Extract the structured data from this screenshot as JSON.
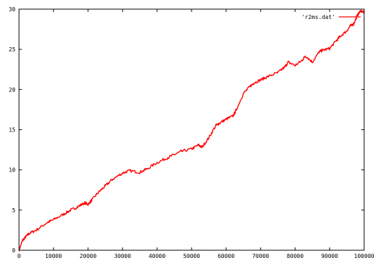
{
  "chart_data": {
    "type": "line",
    "title": "",
    "xlabel": "",
    "ylabel": "",
    "xlim": [
      0,
      100000
    ],
    "ylim": [
      0,
      30
    ],
    "x_ticks": [
      0,
      10000,
      20000,
      30000,
      40000,
      50000,
      60000,
      70000,
      80000,
      90000,
      100000
    ],
    "y_ticks": [
      0,
      5,
      10,
      15,
      20,
      25,
      30
    ],
    "grid": false,
    "legend_position": "top-right",
    "series": [
      {
        "name": "'r2ms.dat'",
        "color": "#ff0000",
        "x": [
          0,
          1000,
          2000,
          3000,
          5000,
          8000,
          10000,
          13000,
          15000,
          17000,
          19000,
          20000,
          21000,
          23000,
          25000,
          27000,
          30000,
          32000,
          35000,
          37000,
          40000,
          43000,
          45000,
          47000,
          50000,
          52000,
          53000,
          55000,
          57000,
          58000,
          60000,
          62000,
          63000,
          65000,
          67000,
          68000,
          70000,
          72000,
          75000,
          77000,
          78000,
          80000,
          82000,
          83000,
          85000,
          87000,
          88000,
          90000,
          92000,
          93000,
          95000,
          96000,
          97000,
          98000,
          99000,
          100000
        ],
        "y": [
          0,
          1.2,
          1.7,
          2.1,
          2.5,
          3.4,
          3.8,
          4.5,
          5.0,
          5.4,
          5.9,
          5.7,
          6.2,
          7.2,
          8.0,
          8.8,
          9.6,
          9.9,
          9.7,
          10.1,
          10.9,
          11.5,
          11.9,
          12.3,
          12.6,
          13.1,
          12.8,
          14.0,
          15.5,
          15.8,
          16.3,
          16.7,
          17.5,
          19.5,
          20.4,
          20.8,
          21.2,
          21.6,
          22.1,
          22.8,
          23.4,
          23.0,
          23.6,
          24.2,
          23.4,
          24.7,
          24.9,
          25.1,
          26.1,
          26.6,
          27.3,
          27.9,
          28.2,
          29.2,
          29.8,
          29.6
        ]
      }
    ]
  }
}
